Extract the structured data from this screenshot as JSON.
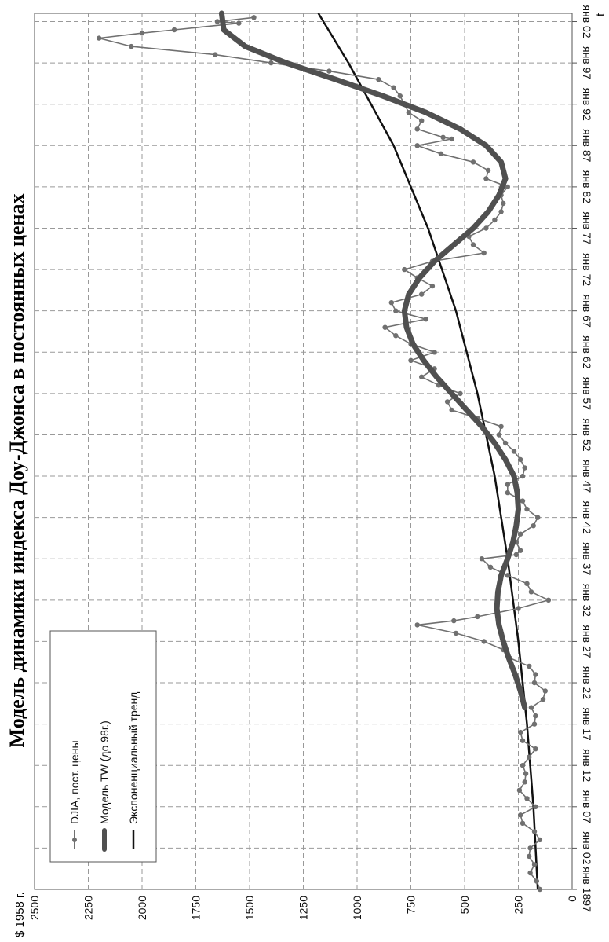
{
  "chart_data": {
    "type": "line",
    "title": "Модель динамики индекса Доу-Джонса в постоянных ценах",
    "unit_label": "$ 1958 г.",
    "x_axis_label": "t",
    "x_tick_labels": [
      "янв 1897",
      "янв 02",
      "янв 07",
      "янв 12",
      "янв 17",
      "янв 22",
      "янв 27",
      "янв 32",
      "янв 37",
      "янв 42",
      "янв 47",
      "янв 52",
      "янв 57",
      "янв 62",
      "янв 67",
      "янв 72",
      "янв 77",
      "янв 82",
      "янв 87",
      "янв 92",
      "янв 97",
      "янв 02"
    ],
    "x_range": [
      1897,
      2003
    ],
    "y_range": [
      0,
      2500
    ],
    "y_ticks": [
      0,
      250,
      500,
      750,
      1000,
      1250,
      1500,
      1750,
      2000,
      2250,
      2500
    ],
    "grid": true,
    "legend_position": "top-left",
    "series": [
      {
        "name": "DJIA, пост. цены",
        "style": "line-with-markers",
        "color": "#707070",
        "points": [
          [
            1897,
            150
          ],
          [
            1898,
            165
          ],
          [
            1899,
            195
          ],
          [
            1900,
            175
          ],
          [
            1901,
            200
          ],
          [
            1902,
            195
          ],
          [
            1903,
            150
          ],
          [
            1904,
            175
          ],
          [
            1905,
            230
          ],
          [
            1906,
            240
          ],
          [
            1907,
            170
          ],
          [
            1908,
            210
          ],
          [
            1909,
            245
          ],
          [
            1910,
            220
          ],
          [
            1911,
            215
          ],
          [
            1912,
            230
          ],
          [
            1913,
            200
          ],
          [
            1914,
            170
          ],
          [
            1915,
            230
          ],
          [
            1916,
            240
          ],
          [
            1917,
            175
          ],
          [
            1918,
            170
          ],
          [
            1919,
            190
          ],
          [
            1920,
            135
          ],
          [
            1921,
            125
          ],
          [
            1922,
            175
          ],
          [
            1923,
            170
          ],
          [
            1924,
            200
          ],
          [
            1925,
            290
          ],
          [
            1926,
            320
          ],
          [
            1927,
            410
          ],
          [
            1928,
            540
          ],
          [
            1929,
            720
          ],
          [
            1929.5,
            550
          ],
          [
            1930,
            440
          ],
          [
            1931,
            250
          ],
          [
            1932,
            110
          ],
          [
            1933,
            190
          ],
          [
            1934,
            210
          ],
          [
            1935,
            300
          ],
          [
            1936,
            380
          ],
          [
            1937,
            420
          ],
          [
            1937.5,
            260
          ],
          [
            1938,
            240
          ],
          [
            1939,
            260
          ],
          [
            1940,
            240
          ],
          [
            1941,
            180
          ],
          [
            1942,
            160
          ],
          [
            1943,
            210
          ],
          [
            1944,
            230
          ],
          [
            1945,
            300
          ],
          [
            1946,
            300
          ],
          [
            1947,
            230
          ],
          [
            1948,
            220
          ],
          [
            1949,
            240
          ],
          [
            1950,
            270
          ],
          [
            1951,
            310
          ],
          [
            1952,
            340
          ],
          [
            1953,
            330
          ],
          [
            1954,
            440
          ],
          [
            1955,
            560
          ],
          [
            1956,
            580
          ],
          [
            1957,
            520
          ],
          [
            1958,
            620
          ],
          [
            1959,
            700
          ],
          [
            1960,
            640
          ],
          [
            1961,
            750
          ],
          [
            1962,
            640
          ],
          [
            1963,
            750
          ],
          [
            1964,
            820
          ],
          [
            1965,
            870
          ],
          [
            1966,
            680
          ],
          [
            1967,
            820
          ],
          [
            1968,
            840
          ],
          [
            1969,
            700
          ],
          [
            1970,
            650
          ],
          [
            1971,
            720
          ],
          [
            1972,
            780
          ],
          [
            1973,
            650
          ],
          [
            1974,
            410
          ],
          [
            1975,
            460
          ],
          [
            1976,
            480
          ],
          [
            1977,
            400
          ],
          [
            1978,
            360
          ],
          [
            1979,
            330
          ],
          [
            1980,
            320
          ],
          [
            1981,
            330
          ],
          [
            1982,
            300
          ],
          [
            1983,
            400
          ],
          [
            1984,
            390
          ],
          [
            1985,
            460
          ],
          [
            1986,
            610
          ],
          [
            1987,
            720
          ],
          [
            1987.8,
            560
          ],
          [
            1988,
            600
          ],
          [
            1989,
            720
          ],
          [
            1990,
            700
          ],
          [
            1991,
            760
          ],
          [
            1992,
            780
          ],
          [
            1993,
            800
          ],
          [
            1994,
            830
          ],
          [
            1995,
            900
          ],
          [
            1996,
            1130
          ],
          [
            1997,
            1400
          ],
          [
            1998,
            1660
          ],
          [
            1999,
            2050
          ],
          [
            2000,
            2200
          ],
          [
            2000.6,
            2000
          ],
          [
            2001,
            1850
          ],
          [
            2001.8,
            1550
          ],
          [
            2002,
            1650
          ],
          [
            2002.5,
            1480
          ]
        ]
      },
      {
        "name": "Модель TW (до 98г.)",
        "style": "thick-line",
        "color": "#505050",
        "points": [
          [
            1919,
            220
          ],
          [
            1921,
            240
          ],
          [
            1923,
            265
          ],
          [
            1925,
            295
          ],
          [
            1927,
            320
          ],
          [
            1929,
            340
          ],
          [
            1931,
            350
          ],
          [
            1933,
            345
          ],
          [
            1935,
            330
          ],
          [
            1937,
            300
          ],
          [
            1939,
            275
          ],
          [
            1941,
            260
          ],
          [
            1943,
            250
          ],
          [
            1945,
            255
          ],
          [
            1947,
            270
          ],
          [
            1949,
            310
          ],
          [
            1951,
            360
          ],
          [
            1953,
            420
          ],
          [
            1955,
            490
          ],
          [
            1957,
            560
          ],
          [
            1959,
            630
          ],
          [
            1961,
            690
          ],
          [
            1963,
            740
          ],
          [
            1965,
            770
          ],
          [
            1967,
            780
          ],
          [
            1969,
            760
          ],
          [
            1971,
            710
          ],
          [
            1973,
            640
          ],
          [
            1975,
            550
          ],
          [
            1977,
            460
          ],
          [
            1979,
            390
          ],
          [
            1981,
            340
          ],
          [
            1983,
            310
          ],
          [
            1985,
            330
          ],
          [
            1987,
            400
          ],
          [
            1989,
            520
          ],
          [
            1991,
            680
          ],
          [
            1993,
            880
          ],
          [
            1995,
            1100
          ],
          [
            1997,
            1330
          ],
          [
            1999,
            1520
          ],
          [
            2001,
            1620
          ],
          [
            2003,
            1630
          ]
        ]
      },
      {
        "name": "Экспоненциальный тренд",
        "style": "line",
        "color": "#111111",
        "points": [
          [
            1897,
            160
          ],
          [
            1907,
            180
          ],
          [
            1917,
            210
          ],
          [
            1927,
            250
          ],
          [
            1937,
            300
          ],
          [
            1947,
            360
          ],
          [
            1957,
            440
          ],
          [
            1967,
            540
          ],
          [
            1977,
            670
          ],
          [
            1987,
            830
          ],
          [
            1997,
            1040
          ],
          [
            2003,
            1180
          ]
        ]
      }
    ]
  }
}
